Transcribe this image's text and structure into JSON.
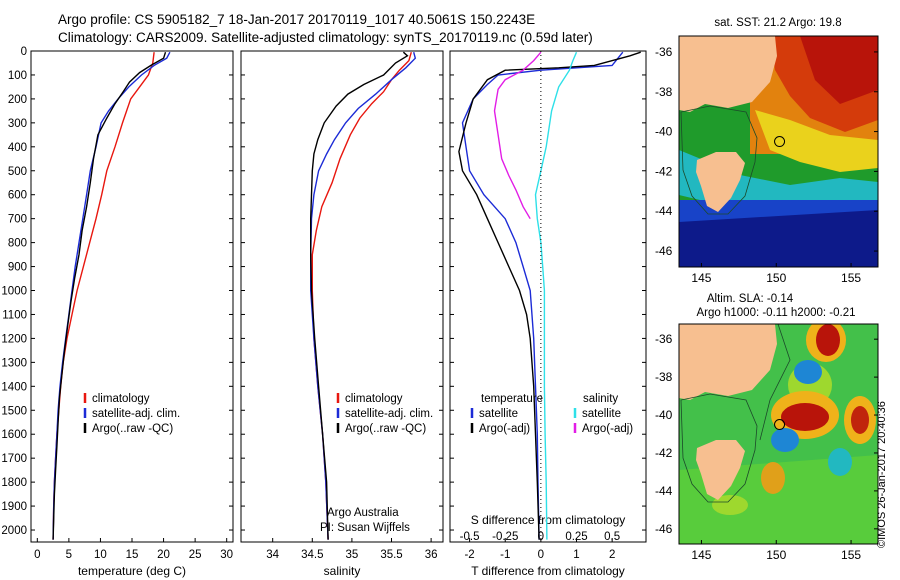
{
  "header": {
    "line1": "Argo profile: CS 5905182_7 18-Jan-2017 20170119_1017 40.5061S 150.2243E",
    "line2": "Climatology: CARS2009. Satellite-adjusted climatology: synTS_20170119.nc (0.59d later)"
  },
  "credit": "©IMOS 26-Jan-2017 20:40:36",
  "colors": {
    "climatology": "#e8170f",
    "satellite": "#1c2bd6",
    "argo": "#000000",
    "sat_sal": "#2ee0e8",
    "argo_sal": "#e21de6",
    "land": "#f7bf90"
  },
  "chart_data": [
    {
      "type": "line",
      "id": "temperature",
      "xlabel": "temperature (deg C)",
      "xlim": [
        -1,
        31
      ],
      "ylim": [
        2050,
        0
      ],
      "xticks": [
        "0",
        "5",
        "10",
        "15",
        "20",
        "25",
        "30"
      ],
      "yticks": [
        "0",
        "100",
        "200",
        "300",
        "400",
        "500",
        "600",
        "700",
        "800",
        "900",
        "1000",
        "1100",
        "1200",
        "1300",
        "1400",
        "1500",
        "1600",
        "1700",
        "1800",
        "1900",
        "2000"
      ],
      "legend": [
        "climatology",
        "satellite-adj. clim.",
        "Argo(..raw -QC)"
      ],
      "series": [
        {
          "name": "climatology",
          "color_key": "climatology",
          "points": [
            [
              18.5,
              5
            ],
            [
              18.3,
              50
            ],
            [
              17.6,
              100
            ],
            [
              16.2,
              150
            ],
            [
              14.8,
              200
            ],
            [
              13.5,
              300
            ],
            [
              12.3,
              400
            ],
            [
              11,
              500
            ],
            [
              10.2,
              600
            ],
            [
              9.3,
              700
            ],
            [
              8.3,
              800
            ],
            [
              7.3,
              900
            ],
            [
              6.3,
              1000
            ],
            [
              5.5,
              1100
            ],
            [
              4.7,
              1200
            ],
            [
              4.1,
              1300
            ],
            [
              3.7,
              1400
            ],
            [
              3.4,
              1500
            ],
            [
              3.1,
              1600
            ],
            [
              2.9,
              1700
            ],
            [
              2.7,
              1800
            ],
            [
              2.6,
              1900
            ],
            [
              2.5,
              2040
            ]
          ]
        },
        {
          "name": "satellite-adj. clim.",
          "color_key": "satellite",
          "points": [
            [
              21,
              5
            ],
            [
              20.5,
              30
            ],
            [
              18.5,
              60
            ],
            [
              16.5,
              100
            ],
            [
              14.5,
              150
            ],
            [
              12.8,
              200
            ],
            [
              11.3,
              250
            ],
            [
              10.1,
              300
            ],
            [
              9.3,
              400
            ],
            [
              8.4,
              500
            ],
            [
              7.8,
              600
            ],
            [
              7.2,
              700
            ],
            [
              6.6,
              800
            ],
            [
              6,
              900
            ],
            [
              5.5,
              1000
            ],
            [
              5,
              1100
            ],
            [
              4.5,
              1200
            ],
            [
              4,
              1300
            ],
            [
              3.6,
              1400
            ],
            [
              3.3,
              1500
            ],
            [
              3.1,
              1600
            ],
            [
              2.9,
              1700
            ],
            [
              2.7,
              1800
            ],
            [
              2.6,
              1900
            ],
            [
              2.5,
              2040
            ]
          ]
        },
        {
          "name": "Argo(..raw -QC)",
          "color_key": "argo",
          "points": [
            [
              20.3,
              5
            ],
            [
              20,
              30
            ],
            [
              18,
              60
            ],
            [
              16.2,
              90
            ],
            [
              14.6,
              130
            ],
            [
              13.6,
              170
            ],
            [
              12.3,
              220
            ],
            [
              11,
              280
            ],
            [
              9.6,
              350
            ],
            [
              8.9,
              450
            ],
            [
              8.4,
              550
            ],
            [
              7.8,
              650
            ],
            [
              7.1,
              750
            ],
            [
              6.6,
              850
            ],
            [
              5.9,
              950
            ],
            [
              5.3,
              1050
            ],
            [
              4.8,
              1150
            ],
            [
              4.3,
              1250
            ],
            [
              3.9,
              1350
            ],
            [
              3.5,
              1450
            ],
            [
              3.3,
              1550
            ],
            [
              3.1,
              1650
            ],
            [
              2.9,
              1750
            ],
            [
              2.7,
              1850
            ],
            [
              2.6,
              1950
            ],
            [
              2.5,
              2040
            ]
          ]
        }
      ]
    },
    {
      "type": "line",
      "id": "salinity",
      "xlabel": "salinity",
      "xlim": [
        33.6,
        36.15
      ],
      "ylim": [
        2050,
        0
      ],
      "xticks": [
        "34",
        "34.5",
        "35",
        "35.5",
        "36"
      ],
      "legend": [
        "climatology",
        "satellite-adj. clim.",
        "Argo(..raw -QC)"
      ],
      "annotations": [
        "Argo Australia",
        "PI: Susan Wijffels"
      ],
      "series": [
        {
          "name": "climatology",
          "color_key": "climatology",
          "points": [
            [
              35.75,
              5
            ],
            [
              35.72,
              40
            ],
            [
              35.6,
              80
            ],
            [
              35.5,
              120
            ],
            [
              35.4,
              170
            ],
            [
              35.25,
              220
            ],
            [
              35.1,
              280
            ],
            [
              34.98,
              350
            ],
            [
              34.85,
              450
            ],
            [
              34.75,
              550
            ],
            [
              34.62,
              650
            ],
            [
              34.55,
              750
            ],
            [
              34.5,
              850
            ],
            [
              34.5,
              1000
            ],
            [
              34.52,
              1200
            ],
            [
              34.57,
              1400
            ],
            [
              34.63,
              1600
            ],
            [
              34.67,
              1800
            ],
            [
              34.7,
              2040
            ]
          ]
        },
        {
          "name": "satellite-adj. clim.",
          "color_key": "satellite",
          "points": [
            [
              35.78,
              5
            ],
            [
              35.8,
              30
            ],
            [
              35.68,
              70
            ],
            [
              35.5,
              120
            ],
            [
              35.3,
              180
            ],
            [
              35.08,
              240
            ],
            [
              34.92,
              300
            ],
            [
              34.78,
              370
            ],
            [
              34.68,
              430
            ],
            [
              34.58,
              500
            ],
            [
              34.52,
              600
            ],
            [
              34.49,
              700
            ],
            [
              34.48,
              850
            ],
            [
              34.48,
              1000
            ],
            [
              34.52,
              1200
            ],
            [
              34.57,
              1400
            ],
            [
              34.63,
              1600
            ],
            [
              34.67,
              1800
            ],
            [
              34.7,
              2040
            ]
          ]
        },
        {
          "name": "Argo(..raw -QC)",
          "color_key": "argo",
          "points": [
            [
              35.65,
              5
            ],
            [
              35.7,
              20
            ],
            [
              35.55,
              50
            ],
            [
              35.4,
              100
            ],
            [
              35.15,
              140
            ],
            [
              34.95,
              180
            ],
            [
              34.8,
              230
            ],
            [
              34.65,
              300
            ],
            [
              34.57,
              370
            ],
            [
              34.52,
              430
            ],
            [
              34.5,
              500
            ],
            [
              34.49,
              600
            ],
            [
              34.48,
              700
            ],
            [
              34.48,
              850
            ],
            [
              34.49,
              1000
            ],
            [
              34.53,
              1200
            ],
            [
              34.58,
              1400
            ],
            [
              34.63,
              1600
            ],
            [
              34.68,
              1800
            ],
            [
              34.7,
              2040
            ]
          ]
        }
      ]
    },
    {
      "type": "line",
      "id": "differences",
      "xlabel": "T difference from climatology",
      "xlim": [
        -2.55,
        2.95
      ],
      "ylim": [
        2050,
        0
      ],
      "xticks": [
        "-2",
        "-1",
        "0",
        "1",
        "2"
      ],
      "top_axis_label": "S difference from climatology",
      "top_xticks": [
        "-0.5",
        "-0.25",
        "0",
        "0.25",
        "0.5"
      ],
      "legend_groups": [
        {
          "header": "temperature",
          "entries": [
            "satellite",
            "Argo(-adj)"
          ]
        },
        {
          "header": "salinity",
          "entries": [
            "satellite",
            "Argo(-adj)"
          ]
        }
      ],
      "series": [
        {
          "name": "temperature satellite",
          "color_key": "satellite",
          "points": [
            [
              2.3,
              5
            ],
            [
              2,
              60
            ],
            [
              0,
              80
            ],
            [
              -1.2,
              100
            ],
            [
              -1.5,
              140
            ],
            [
              -1.9,
              200
            ],
            [
              -2.2,
              300
            ],
            [
              -2.1,
              400
            ],
            [
              -2,
              500
            ],
            [
              -1.6,
              600
            ],
            [
              -1,
              700
            ],
            [
              -0.7,
              800
            ],
            [
              -0.5,
              900
            ],
            [
              -0.3,
              1000
            ],
            [
              -0.2,
              1200
            ],
            [
              -0.15,
              1400
            ],
            [
              -0.1,
              1600
            ],
            [
              -0.08,
              1800
            ],
            [
              -0.05,
              2040
            ]
          ]
        },
        {
          "name": "temperature Argo(-adj)",
          "color_key": "argo",
          "points": [
            [
              2.8,
              5
            ],
            [
              2.5,
              20
            ],
            [
              1.5,
              60
            ],
            [
              0.5,
              70
            ],
            [
              -1,
              80
            ],
            [
              -1.5,
              120
            ],
            [
              -1.9,
              200
            ],
            [
              -2.1,
              300
            ],
            [
              -2.3,
              420
            ],
            [
              -2.2,
              500
            ],
            [
              -1.8,
              600
            ],
            [
              -1.5,
              700
            ],
            [
              -1.2,
              800
            ],
            [
              -0.9,
              900
            ],
            [
              -0.6,
              1000
            ],
            [
              -0.4,
              1100
            ],
            [
              -0.3,
              1200
            ],
            [
              -0.2,
              1400
            ],
            [
              -0.15,
              1600
            ],
            [
              -0.1,
              1800
            ],
            [
              -0.05,
              2040
            ]
          ]
        },
        {
          "name": "salinity satellite",
          "color_key": "sat_sal",
          "points": [
            [
              1,
              5
            ],
            [
              0.9,
              40
            ],
            [
              0.8,
              80
            ],
            [
              0.5,
              150
            ],
            [
              0.3,
              250
            ],
            [
              0.15,
              400
            ],
            [
              0,
              500
            ],
            [
              -0.15,
              600
            ],
            [
              -0.1,
              700
            ],
            [
              0,
              800
            ],
            [
              0.05,
              900
            ],
            [
              0.1,
              1000
            ],
            [
              0.1,
              1200
            ],
            [
              0.1,
              1400
            ],
            [
              0.12,
              1600
            ],
            [
              0.15,
              1800
            ],
            [
              0.17,
              2040
            ]
          ]
        },
        {
          "name": "salinity Argo(-adj)",
          "color_key": "argo_sal",
          "points": [
            [
              0,
              5
            ],
            [
              -0.2,
              40
            ],
            [
              -0.5,
              80
            ],
            [
              -1,
              120
            ],
            [
              -1.2,
              160
            ],
            [
              -1.3,
              250
            ],
            [
              -1.2,
              350
            ],
            [
              -1.1,
              450
            ],
            [
              -0.9,
              520
            ],
            [
              -0.7,
              580
            ],
            [
              -0.5,
              650
            ],
            [
              -0.3,
              700
            ]
          ]
        }
      ]
    },
    {
      "type": "heatmap",
      "id": "sst-map",
      "title": "sat. SST: 21.2  Argo: 19.8",
      "xticks": [
        "145",
        "150",
        "155"
      ],
      "yticks": [
        "-36",
        "-38",
        "-40",
        "-42",
        "-44",
        "-46"
      ],
      "xlim": [
        143.5,
        156.8
      ],
      "ylim": [
        -46.8,
        -35.2
      ],
      "argo_position": [
        150.22,
        -40.5
      ]
    },
    {
      "type": "heatmap",
      "id": "sla-map",
      "title_lines": [
        "Altim. SLA: -0.14",
        "Argo h1000: -0.11 h2000: -0.21"
      ],
      "xticks": [
        "145",
        "150",
        "155"
      ],
      "yticks": [
        "-36",
        "-38",
        "-40",
        "-42",
        "-44",
        "-46"
      ],
      "xlim": [
        143.5,
        156.8
      ],
      "ylim": [
        -46.8,
        -35.2
      ],
      "argo_position": [
        150.22,
        -40.5
      ]
    }
  ]
}
